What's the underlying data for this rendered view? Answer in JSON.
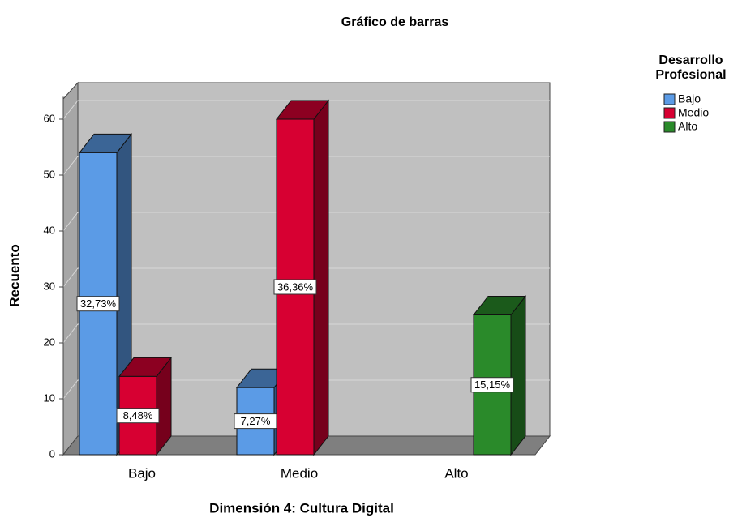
{
  "chart_data": {
    "type": "bar3d",
    "title": "Gráfico de barras",
    "x_label": "Dimensión 4: Cultura Digital",
    "y_label": "Recuento",
    "legend_title": "Desarrollo Profesional",
    "categories": [
      "Bajo",
      "Medio",
      "Alto"
    ],
    "series": [
      {
        "name": "Bajo",
        "color": "#5b9be6",
        "values": [
          54,
          12,
          null
        ],
        "labels": [
          "32,73%",
          "7,27%",
          null
        ]
      },
      {
        "name": "Medio",
        "color": "#d70032",
        "values": [
          14,
          60,
          null
        ],
        "labels": [
          "8,48%",
          "36,36%",
          null
        ]
      },
      {
        "name": "Alto",
        "color": "#2a8a2a",
        "values": [
          null,
          null,
          25
        ],
        "labels": [
          null,
          null,
          "15,15%"
        ]
      }
    ],
    "ylim": [
      0,
      64
    ],
    "yticks": [
      0,
      10,
      20,
      30,
      40,
      50,
      60
    ],
    "grid": true,
    "legend": "right"
  }
}
